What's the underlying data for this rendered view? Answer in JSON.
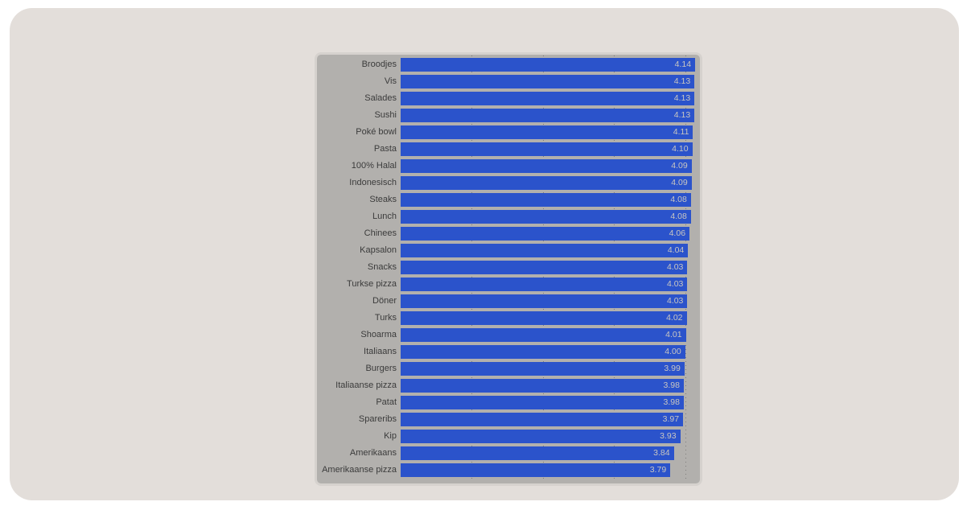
{
  "page": {
    "background": "#ffffff",
    "surface_color": "#e3deda"
  },
  "chart_data": {
    "type": "bar",
    "orientation": "horizontal",
    "title": "",
    "xlabel": "",
    "ylabel": "",
    "legend_position": "none",
    "categories": [
      "Broodjes",
      "Vis",
      "Salades",
      "Sushi",
      "Poké bowl",
      "Pasta",
      "100% Halal",
      "Indonesisch",
      "Steaks",
      "Lunch",
      "Chinees",
      "Kapsalon",
      "Snacks",
      "Turkse pizza",
      "Döner",
      "Turks",
      "Shoarma",
      "Italiaans",
      "Burgers",
      "Italiaanse pizza",
      "Patat",
      "Spareribs",
      "Kip",
      "Amerikaans",
      "Amerikaanse pizza"
    ],
    "values": [
      4.14,
      4.13,
      4.13,
      4.13,
      4.11,
      4.1,
      4.09,
      4.09,
      4.08,
      4.08,
      4.06,
      4.04,
      4.03,
      4.03,
      4.03,
      4.02,
      4.01,
      4.0,
      3.99,
      3.98,
      3.98,
      3.97,
      3.93,
      3.84,
      3.79
    ],
    "value_label_decimals": 2,
    "value_axis": {
      "min": 0,
      "max": 4.15,
      "gridlines": [
        1,
        2,
        3,
        4
      ],
      "gridline_style": "dotted"
    },
    "grid": true,
    "colors": {
      "bar": "#2b53cb",
      "plot_background": "#b2b0ad",
      "panel_border": "#d6d2ce",
      "category_label": "#3b3b3b",
      "value_label": "#c9c6c1"
    }
  }
}
